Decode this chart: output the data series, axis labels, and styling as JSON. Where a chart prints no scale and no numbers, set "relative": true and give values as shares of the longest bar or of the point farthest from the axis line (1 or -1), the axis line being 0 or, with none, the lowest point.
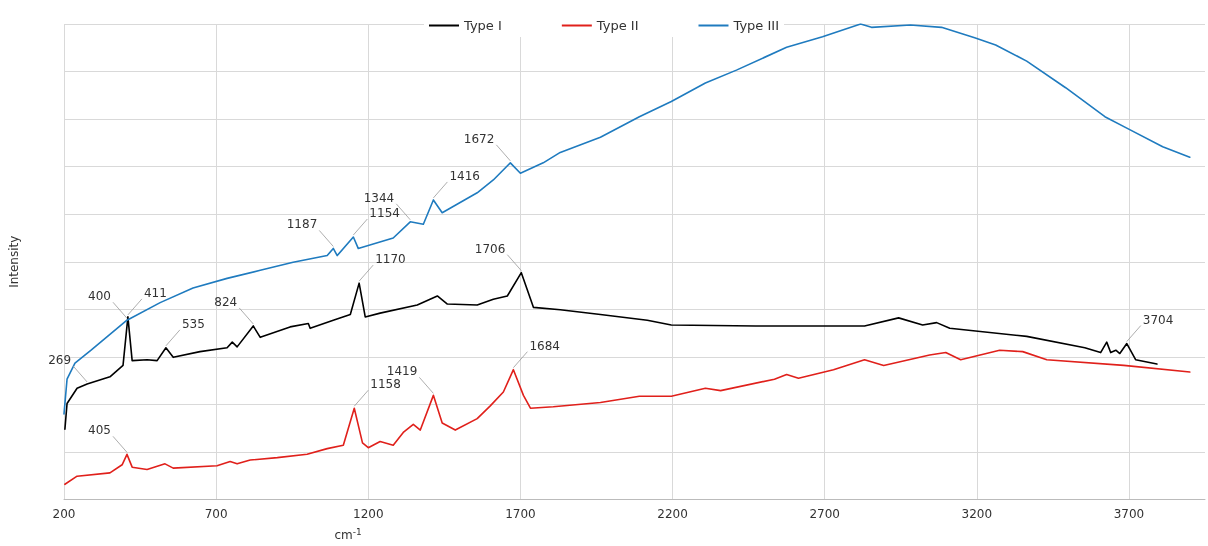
{
  "chart_data": {
    "type": "line",
    "relative": true,
    "xlabel": "cm$^{-1}$",
    "ylabel": "Intensity",
    "xlim": [
      200,
      3950
    ],
    "xticks": [
      200,
      700,
      1200,
      1700,
      2200,
      2700,
      3200,
      3700
    ],
    "grid": true,
    "legend": "top",
    "marker": "none",
    "line_style": "solid",
    "series": [
      {
        "name": "Type I",
        "color": "#000000",
        "x": [
          203,
          210,
          243,
          276,
          351,
          394,
          410,
          424,
          473,
          506,
          535,
          559,
          647,
          736,
          753,
          769,
          822,
          845,
          943,
          1003,
          1009,
          1085,
          1141,
          1170,
          1190,
          1239,
          1361,
          1427,
          1460,
          1558,
          1611,
          1657,
          1703,
          1743,
          1831,
          1963,
          2117,
          2196,
          2473,
          2831,
          2943,
          3022,
          3068,
          3111,
          3364,
          3555,
          3607,
          3627,
          3640,
          3657,
          3670,
          3693,
          3722,
          3792
        ],
        "values": [
          0.148,
          0.202,
          0.234,
          0.243,
          0.258,
          0.282,
          0.384,
          0.292,
          0.294,
          0.292,
          0.319,
          0.299,
          0.311,
          0.319,
          0.331,
          0.321,
          0.365,
          0.341,
          0.363,
          0.37,
          0.36,
          0.377,
          0.389,
          0.455,
          0.384,
          0.392,
          0.409,
          0.428,
          0.411,
          0.409,
          0.421,
          0.428,
          0.477,
          0.404,
          0.399,
          0.389,
          0.377,
          0.367,
          0.365,
          0.365,
          0.382,
          0.367,
          0.372,
          0.36,
          0.343,
          0.319,
          0.309,
          0.331,
          0.309,
          0.314,
          0.307,
          0.328,
          0.294,
          0.285
        ]
      },
      {
        "name": "Type II",
        "color": "#e0201b",
        "x": [
          203,
          243,
          351,
          391,
          407,
          424,
          473,
          532,
          559,
          703,
          746,
          769,
          812,
          901,
          999,
          1065,
          1118,
          1154,
          1181,
          1200,
          1239,
          1282,
          1315,
          1348,
          1371,
          1414,
          1443,
          1486,
          1558,
          1601,
          1644,
          1677,
          1710,
          1733,
          1808,
          1963,
          2091,
          2196,
          2308,
          2358,
          2535,
          2575,
          2614,
          2729,
          2831,
          2894,
          3045,
          3098,
          3147,
          3275,
          3351,
          3430,
          3683,
          3900
        ],
        "values": [
          0.032,
          0.049,
          0.056,
          0.073,
          0.095,
          0.068,
          0.063,
          0.075,
          0.066,
          0.071,
          0.08,
          0.075,
          0.083,
          0.088,
          0.095,
          0.107,
          0.114,
          0.192,
          0.119,
          0.109,
          0.122,
          0.114,
          0.141,
          0.158,
          0.146,
          0.219,
          0.161,
          0.146,
          0.17,
          0.197,
          0.226,
          0.273,
          0.219,
          0.192,
          0.195,
          0.204,
          0.217,
          0.217,
          0.234,
          0.229,
          0.253,
          0.263,
          0.255,
          0.273,
          0.294,
          0.282,
          0.304,
          0.309,
          0.294,
          0.314,
          0.311,
          0.294,
          0.282,
          0.268
        ]
      },
      {
        "name": "Type III",
        "color": "#1f7bbf",
        "x": [
          200,
          210,
          236,
          289,
          407,
          516,
          624,
          736,
          845,
          953,
          1065,
          1085,
          1098,
          1151,
          1167,
          1282,
          1338,
          1381,
          1414,
          1443,
          1558,
          1611,
          1667,
          1700,
          1775,
          1831,
          1963,
          2091,
          2196,
          2308,
          2410,
          2575,
          2693,
          2818,
          2854,
          2982,
          3084,
          3193,
          3262,
          3364,
          3492,
          3621,
          3693,
          3811,
          3900
        ],
        "values": [
          0.18,
          0.253,
          0.287,
          0.314,
          0.377,
          0.414,
          0.445,
          0.465,
          0.482,
          0.499,
          0.513,
          0.528,
          0.513,
          0.552,
          0.528,
          0.55,
          0.584,
          0.579,
          0.63,
          0.603,
          0.645,
          0.672,
          0.708,
          0.686,
          0.708,
          0.73,
          0.762,
          0.805,
          0.837,
          0.876,
          0.903,
          0.951,
          0.973,
          1.0,
          0.993,
          0.998,
          0.993,
          0.971,
          0.956,
          0.922,
          0.866,
          0.805,
          0.781,
          0.742,
          0.72
        ]
      }
    ],
    "annotations": [
      {
        "text": "400",
        "x": 407,
        "y": 0.377
      },
      {
        "text": "411",
        "x": 410,
        "y": 0.384
      },
      {
        "text": "269",
        "x": 276,
        "y": 0.243
      },
      {
        "text": "535",
        "x": 535,
        "y": 0.319
      },
      {
        "text": "824",
        "x": 822,
        "y": 0.365
      },
      {
        "text": "1170",
        "x": 1170,
        "y": 0.455
      },
      {
        "text": "1706",
        "x": 1703,
        "y": 0.477
      },
      {
        "text": "3704",
        "x": 3693,
        "y": 0.328
      },
      {
        "text": "405",
        "x": 407,
        "y": 0.095
      },
      {
        "text": "1158",
        "x": 1154,
        "y": 0.192
      },
      {
        "text": "1419",
        "x": 1414,
        "y": 0.219
      },
      {
        "text": "1684",
        "x": 1677,
        "y": 0.273
      },
      {
        "text": "1187",
        "x": 1085,
        "y": 0.528
      },
      {
        "text": "1154",
        "x": 1151,
        "y": 0.552
      },
      {
        "text": "1344",
        "x": 1338,
        "y": 0.584
      },
      {
        "text": "1416",
        "x": 1414,
        "y": 0.63
      },
      {
        "text": "1672",
        "x": 1667,
        "y": 0.708
      }
    ]
  }
}
